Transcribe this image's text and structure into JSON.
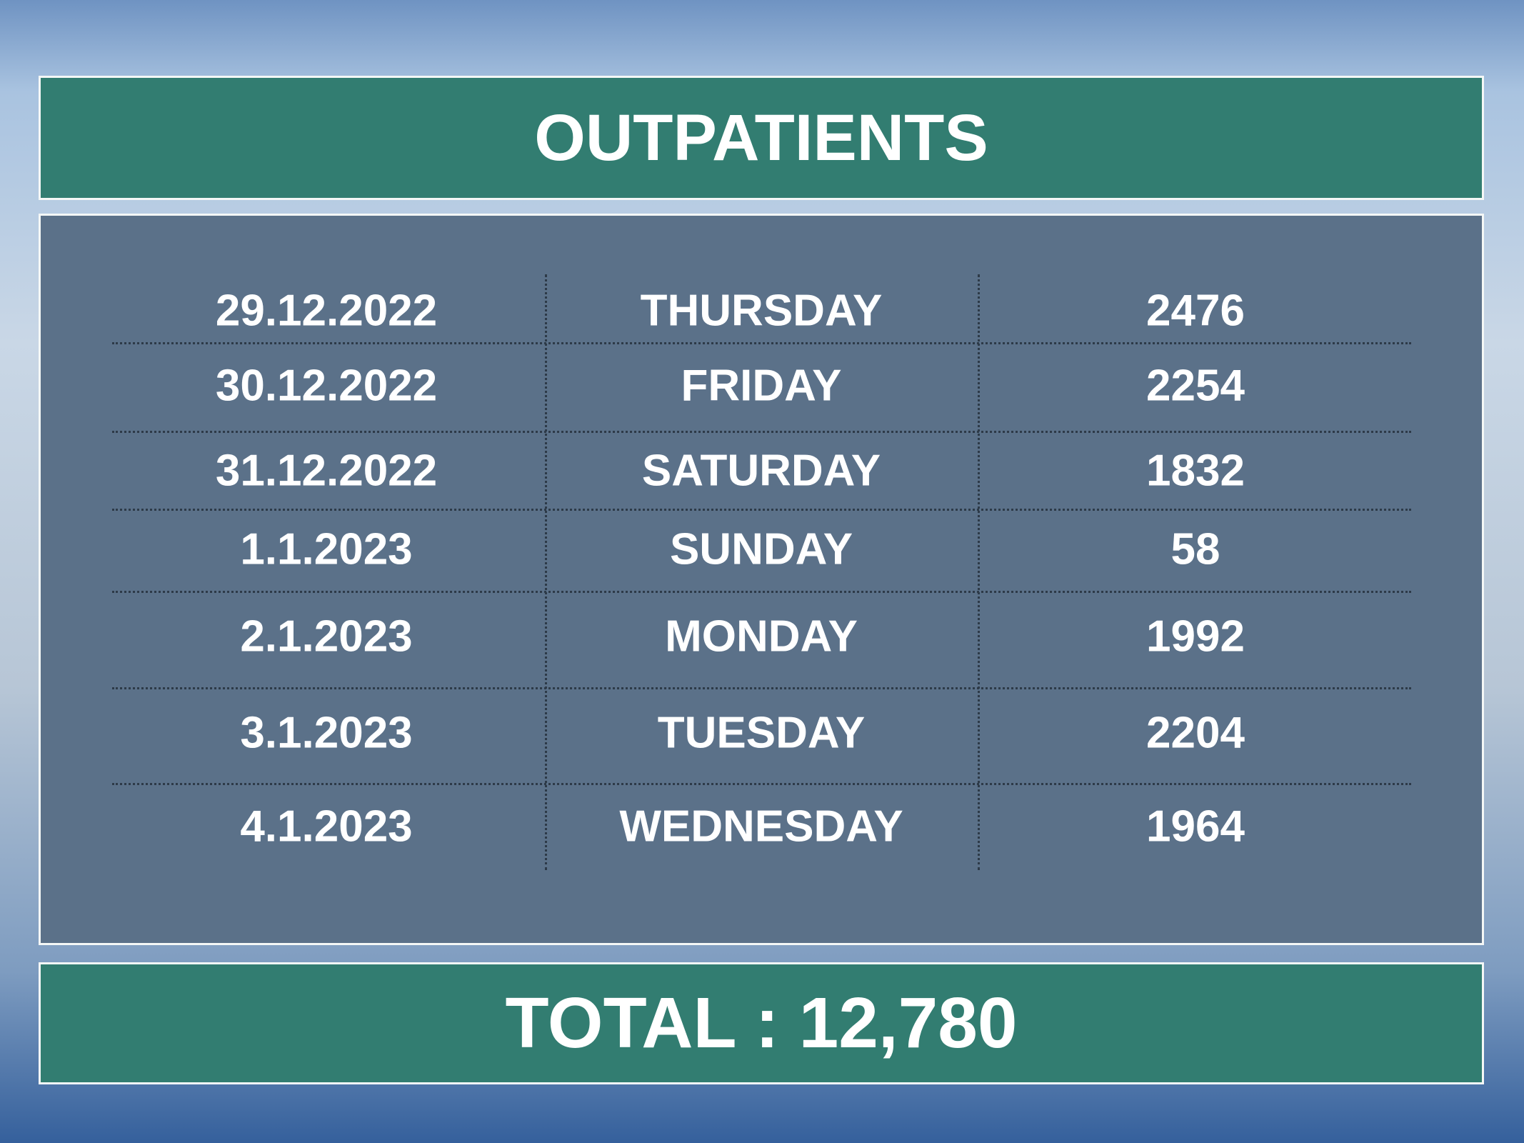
{
  "header": {
    "title": "OUTPATIENTS"
  },
  "table": {
    "rows": [
      [
        "29.12.2022",
        "THURSDAY",
        "2476"
      ],
      [
        "30.12.2022",
        "FRIDAY",
        "2254"
      ],
      [
        "31.12.2022",
        "SATURDAY",
        "1832"
      ],
      [
        "1.1.2023",
        "SUNDAY",
        "58"
      ],
      [
        "2.1.2023",
        "MONDAY",
        "1992"
      ],
      [
        "3.1.2023",
        "TUESDAY",
        "2204"
      ],
      [
        "4.1.2023",
        "WEDNESDAY",
        "1964"
      ]
    ]
  },
  "footer": {
    "total": "TOTAL : 12,780"
  }
}
